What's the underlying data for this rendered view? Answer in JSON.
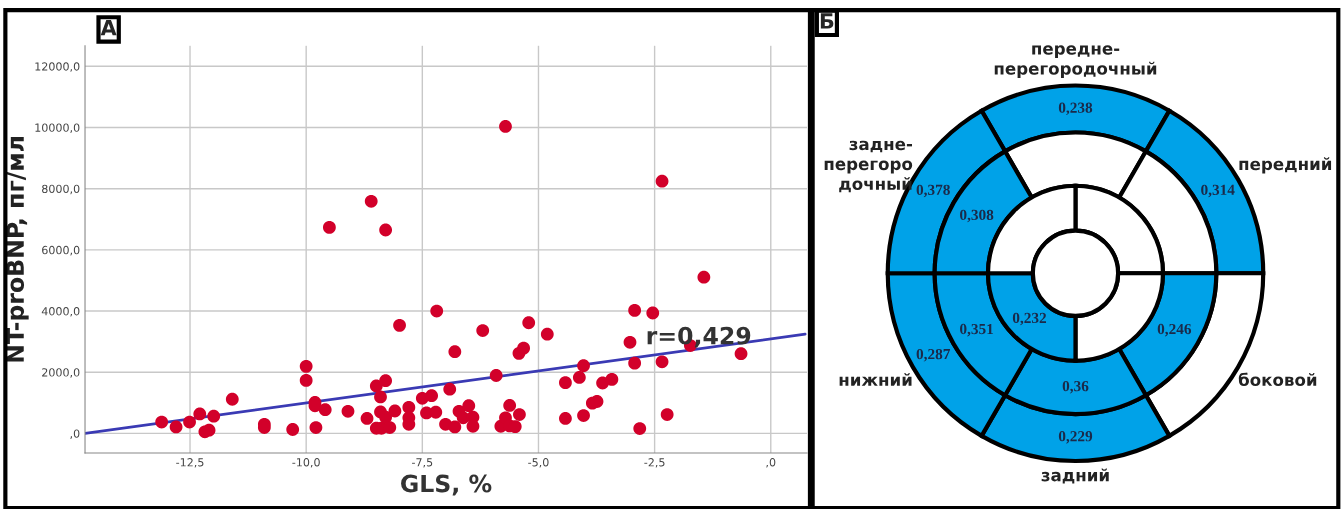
{
  "chart_data": [
    {
      "type": "scatter",
      "title": "А",
      "xlabel": "GLS, %",
      "ylabel": "NT-proBNP, пг/мл",
      "xlim": [
        -14.76,
        0.78
      ],
      "ylim": [
        -640,
        12670
      ],
      "xticks": [
        {
          "value": -12.5,
          "label": "-12,5"
        },
        {
          "value": -10,
          "label": "-10,0"
        },
        {
          "value": -7.5,
          "label": "-7,5"
        },
        {
          "value": -5,
          "label": "-5,0"
        },
        {
          "value": -2.5,
          "label": "-2,5"
        },
        {
          "value": 0,
          "label": ",0"
        }
      ],
      "yticks": [
        {
          "value": 0,
          "label": ",0"
        },
        {
          "value": 2000,
          "label": "2000,0"
        },
        {
          "value": 4000,
          "label": "4000,0"
        },
        {
          "value": 6000,
          "label": "6000,0"
        },
        {
          "value": 8000,
          "label": "8000,0"
        },
        {
          "value": 10000,
          "label": "10000,0"
        },
        {
          "value": 12000,
          "label": "12000,0"
        }
      ],
      "grid": true,
      "annotations": [
        "r=0,429"
      ],
      "series": [
        {
          "type": "scatter",
          "marker": "circle",
          "color": "#d2002a",
          "x": [
            -13.11,
            -12.8,
            -12.51,
            -12.29,
            -12.18,
            -12.09,
            -11.99,
            -11.59,
            -10.9,
            -10.9,
            -10.29,
            -10.0,
            -10.0,
            -9.81,
            -9.81,
            -9.79,
            -9.59,
            -9.5,
            -9.1,
            -8.69,
            -8.6,
            -8.49,
            -8.49,
            -8.4,
            -8.4,
            -8.38,
            -8.29,
            -8.29,
            -8.29,
            -8.2,
            -8.09,
            -7.99,
            -7.79,
            -7.79,
            -7.79,
            -7.5,
            -7.3,
            -7.19,
            -7.41,
            -7.21,
            -7.0,
            -6.91,
            -6.8,
            -6.8,
            -6.71,
            -6.62,
            -6.5,
            -6.41,
            -6.41,
            -6.2,
            -5.91,
            -5.81,
            -5.71,
            -5.71,
            -5.62,
            -5.62,
            -5.5,
            -5.42,
            -5.32,
            -5.41,
            -5.21,
            -4.81,
            -4.42,
            -4.42,
            -4.12,
            -4.03,
            -4.03,
            -3.84,
            -3.74,
            -3.62,
            -3.42,
            -3.03,
            -2.93,
            -2.93,
            -2.82,
            -2.54,
            -2.34,
            -2.34,
            -2.23,
            -1.73,
            -1.44,
            -0.64
          ],
          "values": [
            372,
            213,
            372,
            638,
            53,
            106,
            564,
            1117,
            298,
            192,
            128,
            2192,
            1734,
            1011,
            904,
            192,
            777,
            6735,
            724,
            489,
            7586,
            1553,
            170,
            1192,
            702,
            170,
            6650,
            1724,
            532,
            192,
            734,
            3532,
            851,
            511,
            298,
            1149,
            1234,
            4000,
            670,
            692,
            298,
            1447,
            2671,
            213,
            724,
            511,
            904,
            532,
            234,
            3362,
            1894,
            234,
            10034,
            511,
            915,
            245,
            223,
            2617,
            2788,
            617,
            3618,
            3245,
            1660,
            489,
            1830,
            2213,
            585,
            990,
            1043,
            1649,
            1766,
            2979,
            4022,
            2298,
            160,
            3937,
            8246,
            2341,
            617,
            2873,
            5107,
            2607
          ]
        },
        {
          "type": "line",
          "color": "#3a3ab4",
          "x": [
            -14.76,
            0.74
          ],
          "values": [
            0,
            3245
          ]
        }
      ]
    },
    {
      "type": "other",
      "title": "Б",
      "color": "#00a2e8",
      "categories": [
        "передне-\nперегородочный",
        "передний",
        "боковой",
        "задний",
        "нижний",
        "задне-\nперегоро\nдочный"
      ],
      "cell_labels": [
        [
          "0,238",
          "0,314",
          null,
          "0,229",
          "0,287",
          "0,378"
        ],
        [
          null,
          null,
          "0,246",
          "0,36",
          "0,351",
          "0,308"
        ],
        [
          null,
          null,
          "0,232",
          null
        ]
      ]
    }
  ]
}
